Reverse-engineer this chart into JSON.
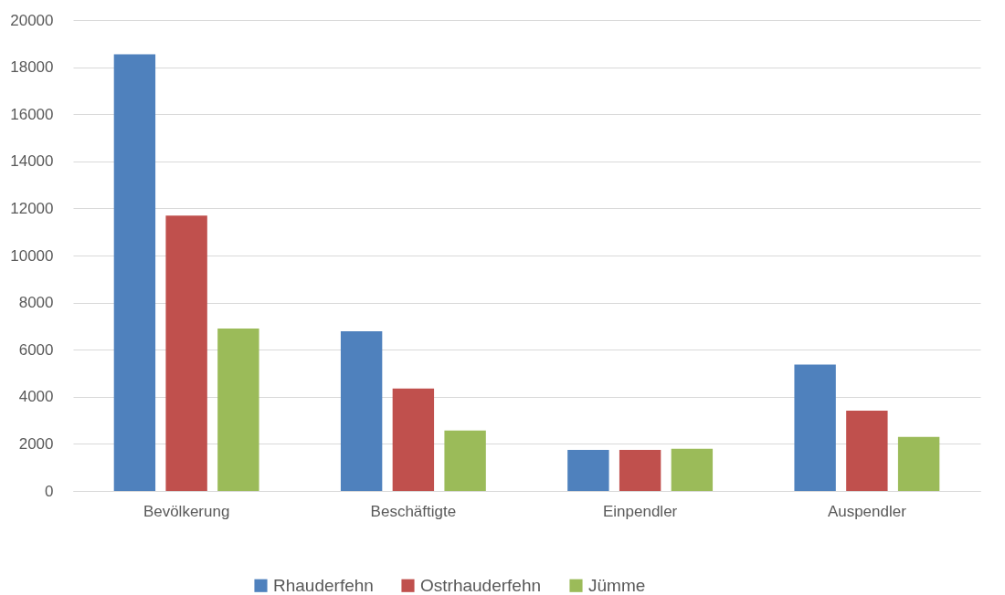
{
  "chart_data": {
    "type": "bar",
    "categories": [
      "Bevölkerung",
      "Beschäftigte",
      "Einpendler",
      "Auspendler"
    ],
    "series": [
      {
        "name": "Rhauderfehn",
        "color": "#4f81bd",
        "values": [
          18550,
          6780,
          1740,
          5370
        ]
      },
      {
        "name": "Ostrhauderfehn",
        "color": "#c0504d",
        "values": [
          11700,
          4350,
          1740,
          3410
        ]
      },
      {
        "name": "Jümme",
        "color": "#9bbb59",
        "values": [
          6900,
          2570,
          1790,
          2300
        ]
      }
    ],
    "ylim": [
      0,
      20000
    ],
    "yticks": [
      0,
      2000,
      4000,
      6000,
      8000,
      10000,
      12000,
      14000,
      16000,
      18000,
      20000
    ],
    "grid": "y",
    "legend": "bottom"
  }
}
